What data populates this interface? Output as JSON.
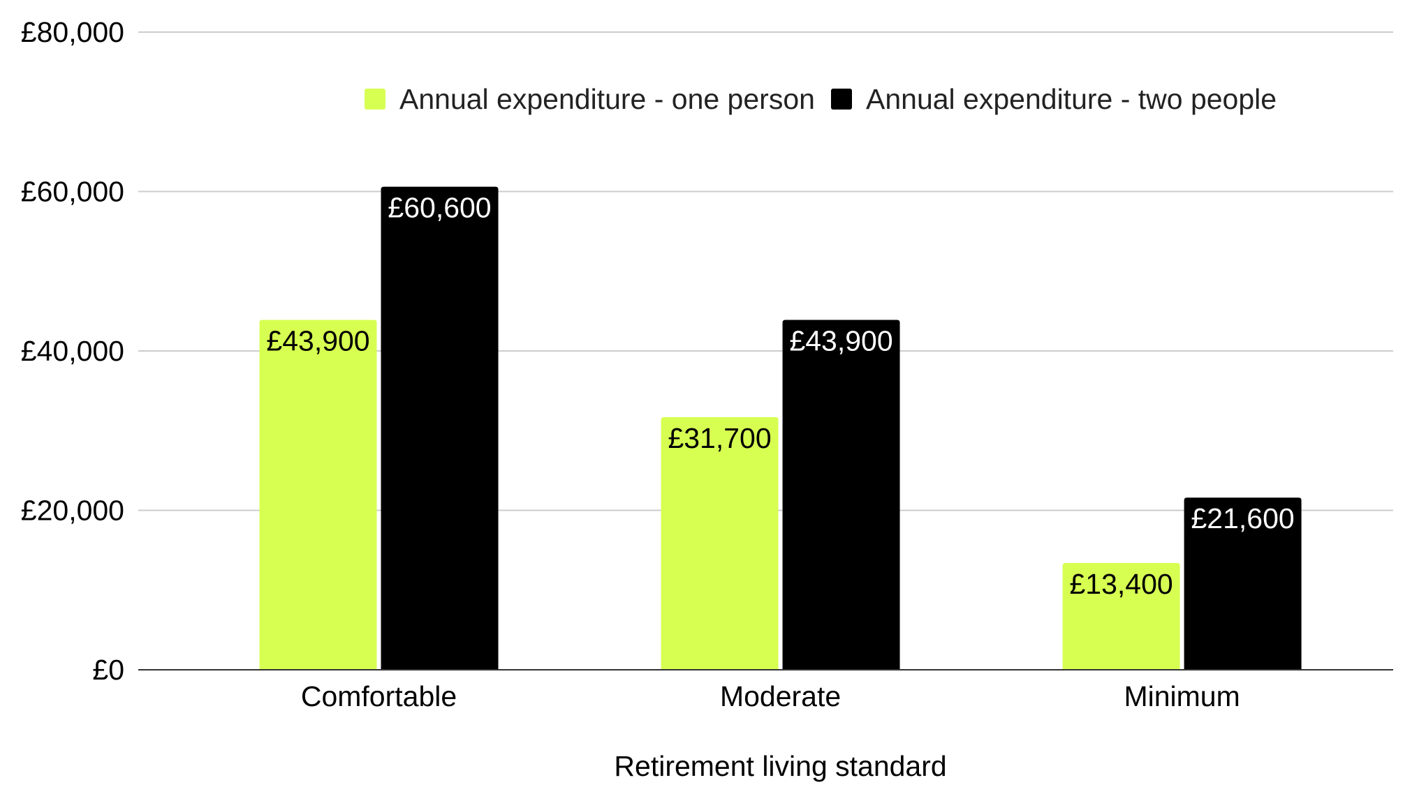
{
  "chart_data": {
    "type": "bar",
    "categories": [
      "Comfortable",
      "Moderate",
      "Minimum"
    ],
    "series": [
      {
        "name": "Annual expenditure - one person",
        "color": "#d7ff52",
        "label_color": "#000000",
        "values": [
          43900,
          31700,
          13400
        ],
        "labels": [
          "£43,900",
          "£31,700",
          "£13,400"
        ]
      },
      {
        "name": "Annual expenditure - two people",
        "color": "#000000",
        "label_color": "#ffffff",
        "values": [
          60600,
          43900,
          21600
        ],
        "labels": [
          "£60,600",
          "£43,900",
          "£21,600"
        ]
      }
    ],
    "xlabel": "Retirement living standard",
    "ylabel": "",
    "ylim": [
      0,
      80000
    ],
    "yticks": [
      0,
      20000,
      40000,
      60000,
      80000
    ],
    "ytick_labels": [
      "£0",
      "£20,000",
      "£40,000",
      "£60,000",
      "£80,000"
    ],
    "grid": true,
    "legend_position": "top"
  }
}
